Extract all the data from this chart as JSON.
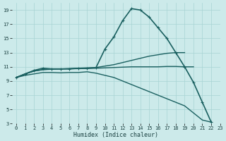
{
  "xlabel": "Humidex (Indice chaleur)",
  "bg_color": "#cceaea",
  "grid_color": "#a8d4d4",
  "line_color": "#1a6060",
  "xlim": [
    -0.5,
    23
  ],
  "ylim": [
    3,
    20
  ],
  "xticks": [
    0,
    1,
    2,
    3,
    4,
    5,
    6,
    7,
    8,
    9,
    10,
    11,
    12,
    13,
    14,
    15,
    16,
    17,
    18,
    19,
    20,
    21,
    22,
    23
  ],
  "yticks": [
    3,
    5,
    7,
    9,
    11,
    13,
    15,
    17,
    19
  ],
  "series": [
    {
      "x": [
        0,
        1,
        2,
        3,
        4,
        5,
        6,
        7,
        8,
        9,
        10,
        11,
        12,
        13,
        14,
        15,
        16,
        17,
        18,
        19,
        20,
        21,
        22
      ],
      "y": [
        9.5,
        10.0,
        10.5,
        10.8,
        10.7,
        10.7,
        10.7,
        10.8,
        10.8,
        10.9,
        13.5,
        15.2,
        17.5,
        19.2,
        19.0,
        18.0,
        16.5,
        15.0,
        13.0,
        11.0,
        8.8,
        6.0,
        3.2
      ],
      "marker": true,
      "lw": 1.2
    },
    {
      "x": [
        0,
        1,
        2,
        3,
        4,
        5,
        6,
        7,
        8,
        9,
        10,
        11,
        12,
        13,
        14,
        15,
        16,
        17,
        18,
        19
      ],
      "y": [
        9.5,
        10.0,
        10.4,
        10.6,
        10.7,
        10.7,
        10.75,
        10.8,
        10.85,
        10.9,
        11.1,
        11.3,
        11.6,
        11.9,
        12.2,
        12.5,
        12.7,
        12.9,
        13.0,
        13.0
      ],
      "marker": false,
      "lw": 1.0
    },
    {
      "x": [
        0,
        1,
        2,
        3,
        4,
        5,
        6,
        7,
        8,
        9,
        10,
        11,
        12,
        13,
        14,
        15,
        16,
        17,
        18,
        19,
        20
      ],
      "y": [
        9.5,
        10.0,
        10.4,
        10.6,
        10.65,
        10.7,
        10.72,
        10.74,
        10.76,
        10.8,
        10.85,
        10.9,
        10.95,
        11.0,
        11.0,
        11.0,
        11.0,
        11.05,
        11.05,
        11.0,
        11.0
      ],
      "marker": false,
      "lw": 1.0
    },
    {
      "x": [
        0,
        1,
        2,
        3,
        4,
        5,
        6,
        7,
        8,
        9,
        10,
        11,
        12,
        13,
        14,
        15,
        16,
        17,
        18,
        19,
        20,
        21,
        22
      ],
      "y": [
        9.5,
        9.8,
        10.0,
        10.2,
        10.2,
        10.15,
        10.2,
        10.2,
        10.3,
        10.1,
        9.8,
        9.5,
        9.0,
        8.5,
        8.0,
        7.5,
        7.0,
        6.5,
        6.0,
        5.5,
        4.5,
        3.5,
        3.2
      ],
      "marker": false,
      "lw": 1.0
    }
  ]
}
